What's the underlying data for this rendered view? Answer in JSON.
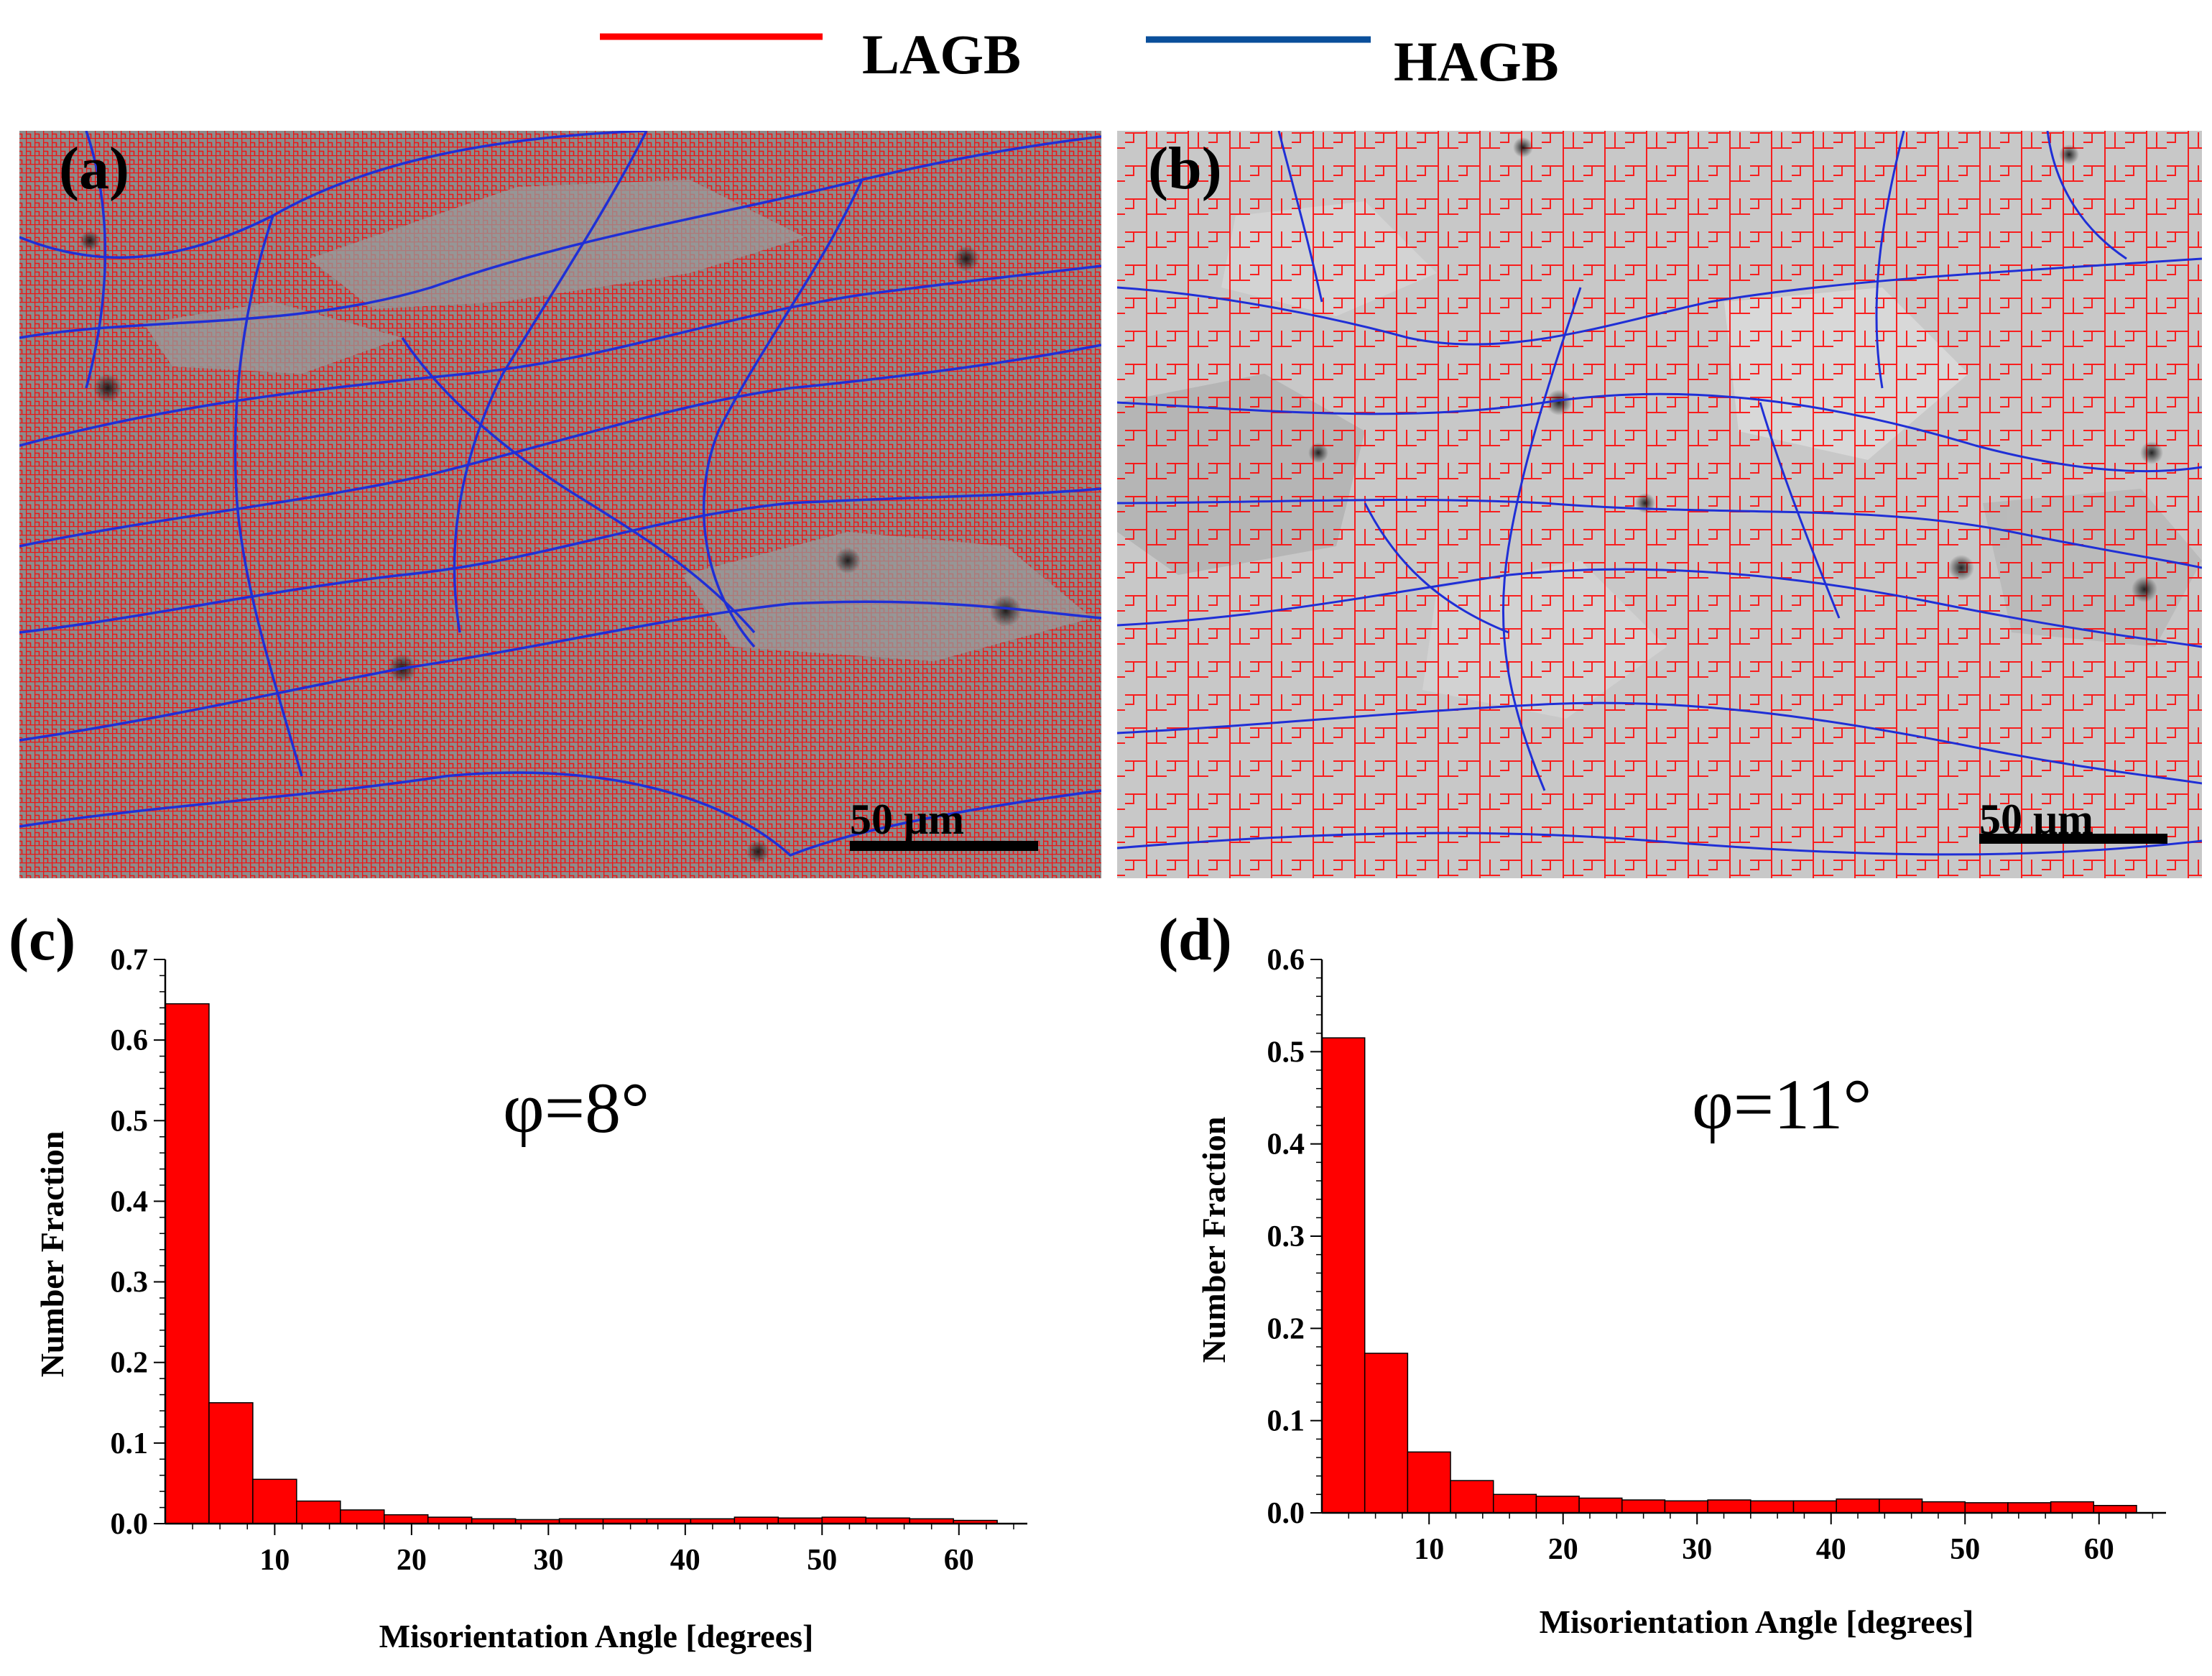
{
  "legend": {
    "lagb_label": "LAGB",
    "hagb_label": "HAGB",
    "lagb_color": "#ff0000",
    "hagb_color": "#0a4f9b"
  },
  "micrographs": [
    {
      "panel_label": "(a)",
      "scale_bar": "50 μm",
      "boundary_style": "dense-LAGB"
    },
    {
      "panel_label": "(b)",
      "scale_bar": "50 μm",
      "boundary_style": "sparse-LAGB"
    }
  ],
  "chart_data": [
    {
      "type": "bar",
      "panel_label": "(c)",
      "annotation": "φ=8°",
      "xlabel": "Misorientation Angle [degrees]",
      "ylabel": "Number Fraction",
      "xlim": [
        2,
        65
      ],
      "ylim": [
        0,
        0.7
      ],
      "xticks": [
        10,
        20,
        30,
        40,
        50,
        60
      ],
      "yticks": [
        "0.0",
        "0.1",
        "0.2",
        "0.3",
        "0.4",
        "0.5",
        "0.6",
        "0.7"
      ],
      "bin_width": 3.2,
      "bin_starts": [
        2,
        5.2,
        8.4,
        11.6,
        14.8,
        18,
        21.2,
        24.4,
        27.6,
        30.8,
        34,
        37.2,
        40.4,
        43.6,
        46.8,
        50,
        53.2,
        56.4,
        59.6
      ],
      "values": [
        0.645,
        0.15,
        0.055,
        0.028,
        0.017,
        0.011,
        0.008,
        0.006,
        0.005,
        0.006,
        0.006,
        0.006,
        0.006,
        0.008,
        0.007,
        0.008,
        0.007,
        0.006,
        0.004
      ],
      "bar_color": "#ff0000"
    },
    {
      "type": "bar",
      "panel_label": "(d)",
      "annotation": "φ=11°",
      "xlabel": "Misorientation Angle [degrees]",
      "ylabel": "Number Fraction",
      "xlim": [
        2,
        65
      ],
      "ylim": [
        0,
        0.6
      ],
      "xticks": [
        10,
        20,
        30,
        40,
        50,
        60
      ],
      "yticks": [
        "0.0",
        "0.1",
        "0.2",
        "0.3",
        "0.4",
        "0.5",
        "0.6"
      ],
      "bin_width": 3.2,
      "bin_starts": [
        2,
        5.2,
        8.4,
        11.6,
        14.8,
        18,
        21.2,
        24.4,
        27.6,
        30.8,
        34,
        37.2,
        40.4,
        43.6,
        46.8,
        50,
        53.2,
        56.4,
        59.6
      ],
      "values": [
        0.515,
        0.173,
        0.066,
        0.035,
        0.02,
        0.018,
        0.016,
        0.014,
        0.013,
        0.014,
        0.013,
        0.013,
        0.015,
        0.015,
        0.012,
        0.011,
        0.011,
        0.012,
        0.008
      ],
      "bar_color": "#ff0000"
    }
  ]
}
